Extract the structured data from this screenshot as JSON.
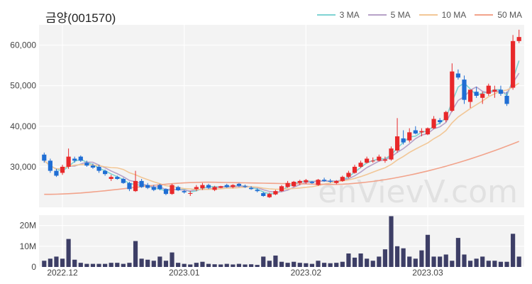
{
  "title": "금양(001570)",
  "watermark": "enVievV.com",
  "legend": [
    {
      "label": "3 MA",
      "color": "#7fd3d3"
    },
    {
      "label": "5 MA",
      "color": "#b7a2c8"
    },
    {
      "label": "10 MA",
      "color": "#f2c797"
    },
    {
      "label": "50 MA",
      "color": "#f2a38b"
    }
  ],
  "colors": {
    "up": "#e8282a",
    "down": "#1f6ed4",
    "volume": "#3d3e66",
    "panel": "#f3f3f3"
  },
  "chart_data": {
    "type": "candlestick",
    "price_ylim": [
      20000,
      65000
    ],
    "price_ticks": [
      30000,
      40000,
      50000,
      60000
    ],
    "price_tick_labels": [
      "30,000",
      "40,000",
      "50,000",
      "60,000"
    ],
    "volume_ylim": [
      0,
      25000000
    ],
    "volume_ticks": [
      0,
      10000000,
      20000000
    ],
    "volume_tick_labels": [
      "0",
      "10M",
      "20M"
    ],
    "x_ticks": [
      {
        "i": 3,
        "label": "2022.12"
      },
      {
        "i": 23,
        "label": "2023.01"
      },
      {
        "i": 43,
        "label": "2023.02"
      },
      {
        "i": 63,
        "label": "2023.03"
      }
    ],
    "ohlc": [
      [
        33000,
        33500,
        31000,
        31500
      ],
      [
        31500,
        32000,
        28500,
        29000
      ],
      [
        29000,
        29500,
        27500,
        27800
      ],
      [
        28500,
        30500,
        28000,
        30000
      ],
      [
        30000,
        34500,
        29500,
        32500
      ],
      [
        32000,
        32500,
        31000,
        31500
      ],
      [
        32500,
        32800,
        31200,
        31500
      ],
      [
        31000,
        31500,
        30000,
        30300
      ],
      [
        30300,
        30800,
        29500,
        29800
      ],
      [
        30000,
        30500,
        28500,
        29000
      ],
      [
        29000,
        29300,
        27800,
        28200
      ],
      [
        27000,
        28000,
        26500,
        27500
      ],
      [
        27500,
        27800,
        26800,
        27000
      ],
      [
        27000,
        27300,
        25800,
        26000
      ],
      [
        26000,
        26300,
        24000,
        24500
      ],
      [
        24000,
        29000,
        23800,
        26500
      ],
      [
        26500,
        27000,
        24800,
        25000
      ],
      [
        25500,
        26000,
        24500,
        24800
      ],
      [
        25000,
        25500,
        24000,
        24300
      ],
      [
        25500,
        25800,
        24200,
        24500
      ],
      [
        24500,
        24700,
        23000,
        23300
      ],
      [
        23300,
        25800,
        23100,
        25500
      ],
      [
        25000,
        25300,
        24000,
        24200
      ],
      [
        24000,
        24300,
        23400,
        23700
      ],
      [
        23400,
        24000,
        22800,
        23500
      ],
      [
        24500,
        25500,
        24000,
        25000
      ],
      [
        24700,
        26000,
        24300,
        25500
      ],
      [
        25500,
        25800,
        24500,
        24800
      ],
      [
        24300,
        25300,
        24000,
        25000
      ],
      [
        24800,
        25300,
        24700,
        25200
      ],
      [
        25500,
        25800,
        24800,
        25000
      ],
      [
        25000,
        25700,
        24700,
        25500
      ],
      [
        25800,
        26000,
        25000,
        25300
      ],
      [
        25200,
        25600,
        24800,
        25000
      ],
      [
        24800,
        25200,
        24300,
        24500
      ],
      [
        24300,
        24700,
        23700,
        24000
      ],
      [
        23500,
        23800,
        22600,
        22800
      ],
      [
        22500,
        23600,
        22300,
        23300
      ],
      [
        23200,
        24300,
        23000,
        24000
      ],
      [
        24000,
        25500,
        23800,
        25200
      ],
      [
        25000,
        26500,
        24800,
        26000
      ],
      [
        25200,
        26500,
        25000,
        26300
      ],
      [
        26000,
        26800,
        25500,
        26500
      ],
      [
        26200,
        27000,
        25800,
        26700
      ],
      [
        26300,
        26500,
        25800,
        26000
      ],
      [
        25500,
        27000,
        25300,
        26800
      ],
      [
        26800,
        27300,
        26300,
        26500
      ],
      [
        26500,
        27000,
        26000,
        26300
      ],
      [
        26000,
        26700,
        25700,
        26500
      ],
      [
        26500,
        27800,
        26300,
        27500
      ],
      [
        27500,
        29000,
        27200,
        28500
      ],
      [
        28500,
        30500,
        28300,
        30000
      ],
      [
        30000,
        31500,
        29700,
        31000
      ],
      [
        31000,
        32500,
        30800,
        32000
      ],
      [
        31500,
        32300,
        31000,
        31500
      ],
      [
        31500,
        33000,
        31300,
        32500
      ],
      [
        31500,
        32500,
        31000,
        31800
      ],
      [
        31800,
        35000,
        31500,
        34500
      ],
      [
        34000,
        42000,
        33500,
        37500
      ],
      [
        37000,
        39000,
        35500,
        36000
      ],
      [
        36500,
        39500,
        36000,
        38500
      ],
      [
        39000,
        40000,
        38000,
        38200
      ],
      [
        38500,
        39500,
        37500,
        38800
      ],
      [
        38000,
        39700,
        37800,
        39500
      ],
      [
        39500,
        42500,
        39300,
        41800
      ],
      [
        41500,
        42000,
        40500,
        41000
      ],
      [
        41500,
        43800,
        41000,
        43500
      ],
      [
        43800,
        55500,
        43500,
        53500
      ],
      [
        53000,
        54000,
        51500,
        52000
      ],
      [
        51500,
        52500,
        45500,
        46500
      ],
      [
        46000,
        49000,
        44500,
        49000
      ],
      [
        48500,
        49700,
        47000,
        47500
      ],
      [
        47000,
        48500,
        45500,
        48000
      ],
      [
        48000,
        50500,
        47500,
        50000
      ],
      [
        48500,
        50000,
        47000,
        49000
      ],
      [
        49000,
        50000,
        47500,
        48000
      ],
      [
        47500,
        48500,
        45000,
        45500
      ],
      [
        49500,
        62500,
        49000,
        61000
      ],
      [
        61000,
        63800,
        60500,
        62000
      ]
    ],
    "volume": [
      3000000,
      4000000,
      5000000,
      4000000,
      13500000,
      3500000,
      2000000,
      1500000,
      1500000,
      1500000,
      1500000,
      2000000,
      2000000,
      1500000,
      2000000,
      12500000,
      4000000,
      3500000,
      3000000,
      5000000,
      3000000,
      7000000,
      2000000,
      1500000,
      1200000,
      2000000,
      2500000,
      1500000,
      1300000,
      1200000,
      1500000,
      1200000,
      1500000,
      1200000,
      1300000,
      1000000,
      5000000,
      3000000,
      5500000,
      2500000,
      2000000,
      2500000,
      2000000,
      1800000,
      1500000,
      3000000,
      2000000,
      1800000,
      2000000,
      2500000,
      6500000,
      4500000,
      6500000,
      4000000,
      3000000,
      5000000,
      8500000,
      24500000,
      10000000,
      9000000,
      5000000,
      4000000,
      8000000,
      15500000,
      5000000,
      5000000,
      6000000,
      3000000,
      14000000,
      6000000,
      3000000,
      4000000,
      5000000,
      3000000,
      3000000,
      2500000,
      2500000,
      16000000,
      5000000
    ]
  }
}
